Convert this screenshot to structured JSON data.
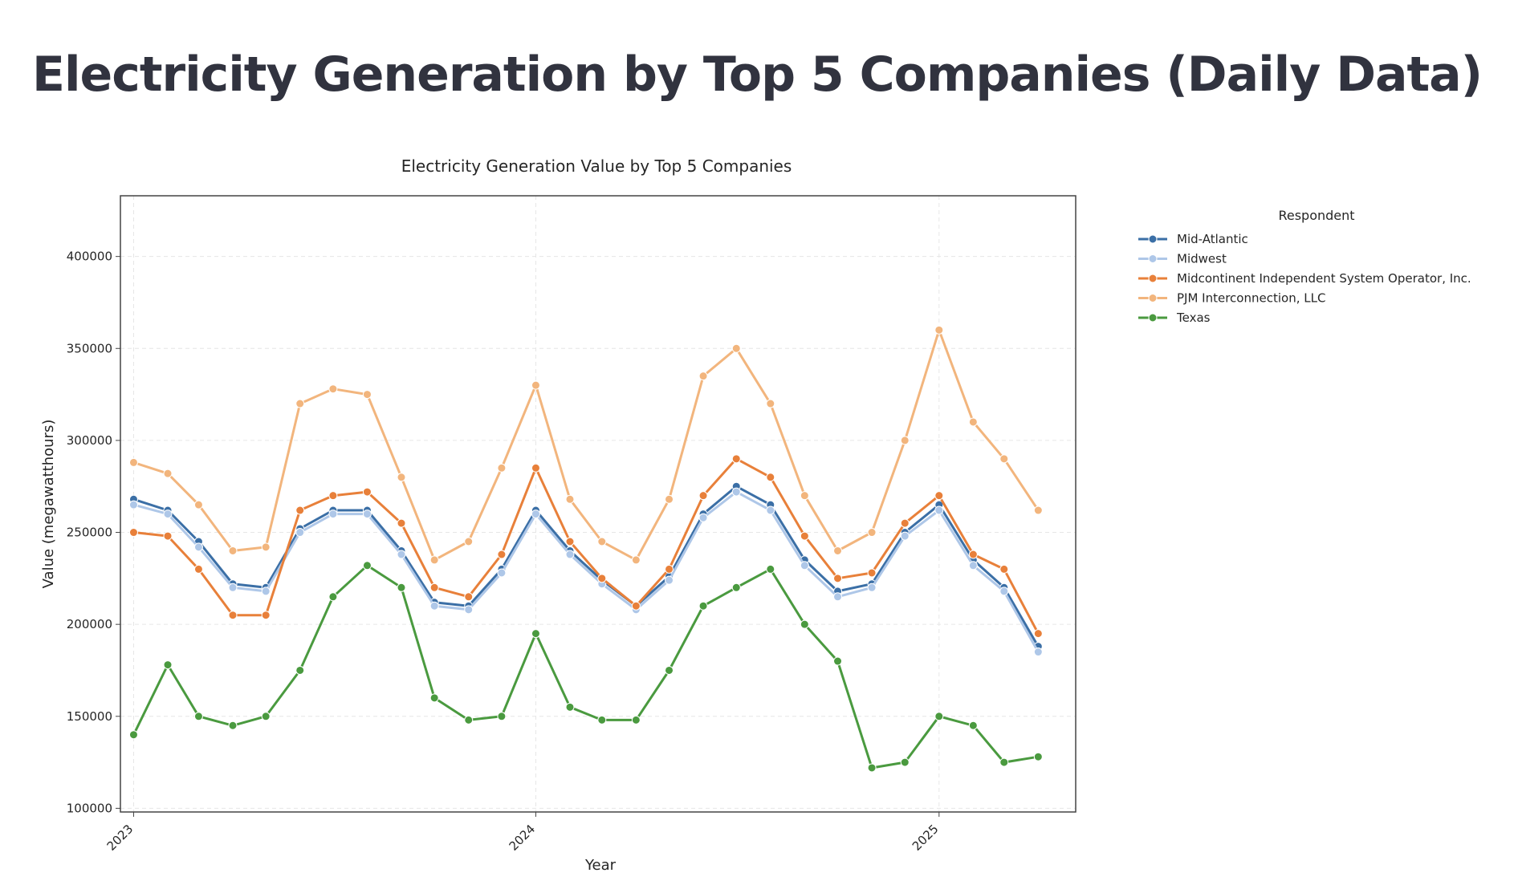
{
  "page": {
    "title": "Electricity Generation by Top 5 Companies (Daily Data)"
  },
  "chart_data": {
    "type": "line",
    "title": "Electricity Generation Value by Top 5 Companies",
    "xlabel": "Year",
    "ylabel": "Value (megawatthours)",
    "x_ticks": [
      "2023",
      "2024",
      "2025"
    ],
    "y_ticks": [
      "100000",
      "150000",
      "200000",
      "250000",
      "300000",
      "350000",
      "400000"
    ],
    "xlim": [
      "2022-12-20",
      "2025-05-05"
    ],
    "ylim": [
      98000,
      433000
    ],
    "grid": true,
    "legend": {
      "title": "Respondent",
      "placement": "outside-right"
    },
    "markers": true,
    "x": [
      "2023-01-01",
      "2023-02-01",
      "2023-03-01",
      "2023-04-01",
      "2023-05-01",
      "2023-06-01",
      "2023-07-01",
      "2023-08-01",
      "2023-09-01",
      "2023-10-01",
      "2023-11-01",
      "2023-12-01",
      "2024-01-01",
      "2024-02-01",
      "2024-03-01",
      "2024-04-01",
      "2024-05-01",
      "2024-06-01",
      "2024-07-01",
      "2024-08-01",
      "2024-09-01",
      "2024-10-01",
      "2024-11-01",
      "2024-12-01",
      "2025-01-01",
      "2025-02-01",
      "2025-03-01",
      "2025-04-01"
    ],
    "series": [
      {
        "name": "Mid-Atlantic",
        "color": "#3b6fa6",
        "values": [
          268000,
          262000,
          245000,
          222000,
          220000,
          252000,
          262000,
          262000,
          240000,
          212000,
          210000,
          230000,
          262000,
          240000,
          224000,
          210000,
          226000,
          260000,
          275000,
          265000,
          235000,
          218000,
          222000,
          250000,
          265000,
          235000,
          220000,
          188000
        ]
      },
      {
        "name": "Midwest",
        "color": "#aec7e8",
        "values": [
          265000,
          260000,
          242000,
          220000,
          218000,
          250000,
          260000,
          260000,
          238000,
          210000,
          208000,
          228000,
          260000,
          238000,
          222000,
          208000,
          224000,
          258000,
          272000,
          262000,
          232000,
          215000,
          220000,
          248000,
          262000,
          232000,
          218000,
          185000
        ]
      },
      {
        "name": "Midcontinent Independent System Operator, Inc.",
        "color": "#e8803a",
        "values": [
          250000,
          248000,
          230000,
          205000,
          205000,
          262000,
          270000,
          272000,
          255000,
          220000,
          215000,
          238000,
          285000,
          245000,
          225000,
          210000,
          230000,
          270000,
          290000,
          280000,
          248000,
          225000,
          228000,
          255000,
          270000,
          238000,
          230000,
          195000
        ]
      },
      {
        "name": "PJM Interconnection, LLC",
        "color": "#f2b57d",
        "values": [
          288000,
          282000,
          265000,
          240000,
          242000,
          320000,
          328000,
          325000,
          280000,
          235000,
          245000,
          285000,
          330000,
          268000,
          245000,
          235000,
          268000,
          335000,
          350000,
          320000,
          270000,
          240000,
          250000,
          300000,
          360000,
          310000,
          290000,
          262000
        ]
      },
      {
        "name": "Texas",
        "color": "#4a9a3f",
        "values": [
          140000,
          178000,
          150000,
          145000,
          150000,
          175000,
          215000,
          232000,
          220000,
          160000,
          148000,
          150000,
          195000,
          155000,
          148000,
          148000,
          175000,
          210000,
          220000,
          230000,
          200000,
          180000,
          122000,
          125000,
          150000,
          145000,
          125000,
          128000
        ]
      }
    ]
  }
}
